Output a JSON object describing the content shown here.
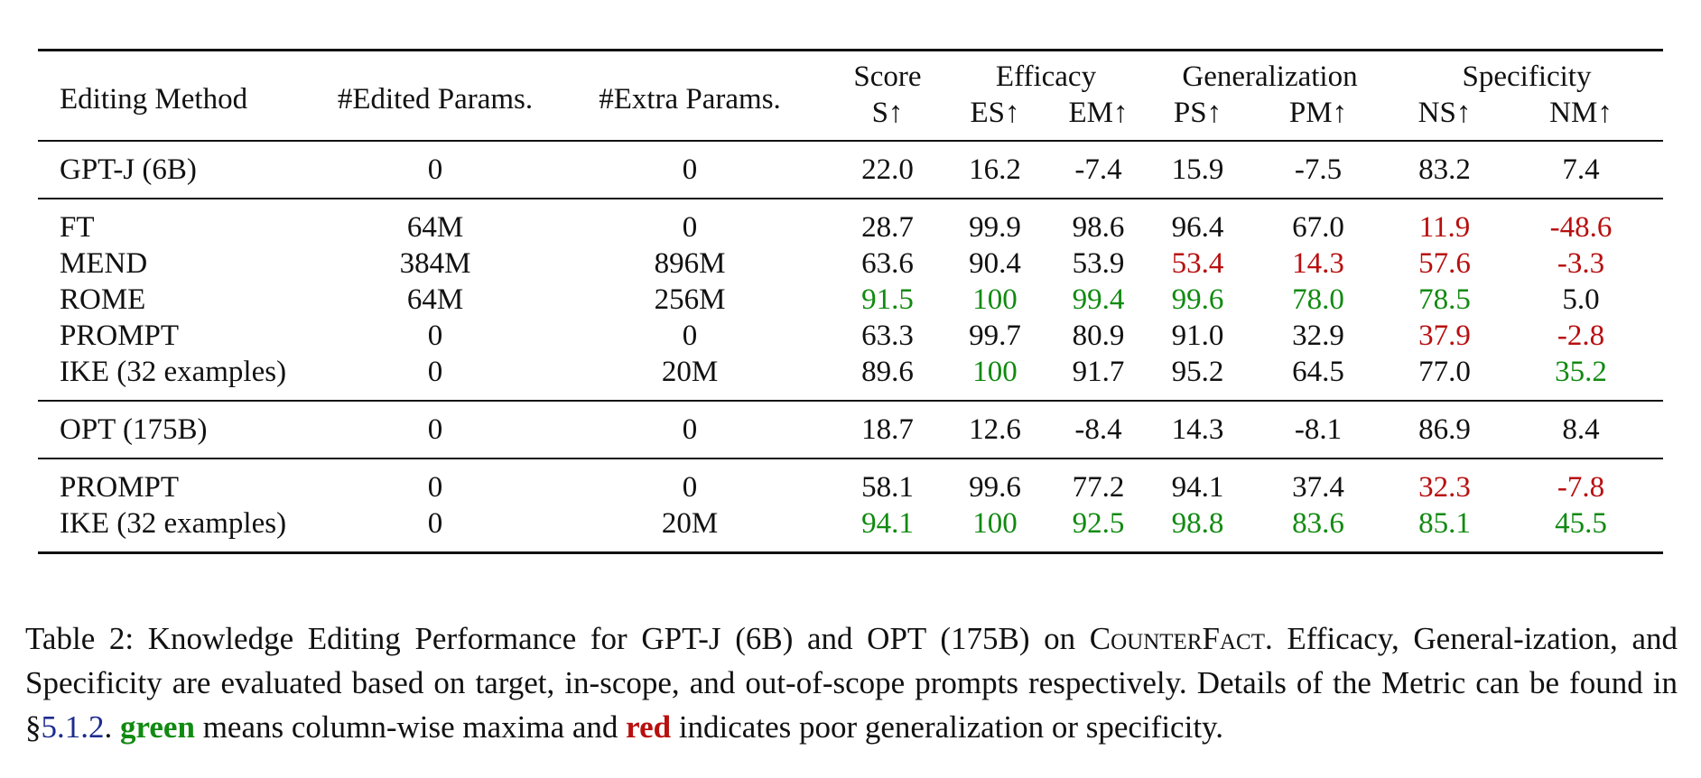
{
  "table": {
    "header": {
      "method": "Editing Method",
      "edited": "#Edited Params.",
      "extra": "#Extra Params.",
      "score": "Score",
      "efficacy": "Efficacy",
      "generalization": "Generalization",
      "specificity": "Specificity",
      "sub": [
        "S↑",
        "ES↑",
        "EM↑",
        "PS↑",
        "PM↑",
        "NS↑",
        "NM↑"
      ]
    },
    "groups": [
      {
        "rows": [
          {
            "method": "GPT-J (6B)",
            "edited": "0",
            "extra": "0",
            "vals": [
              "22.0",
              "16.2",
              "-7.4",
              "15.9",
              "-7.5",
              "83.2",
              "7.4"
            ],
            "hl": [
              "",
              "",
              "",
              "",
              "",
              "",
              ""
            ]
          }
        ]
      },
      {
        "rows": [
          {
            "method": "FT",
            "edited": "64M",
            "extra": "0",
            "vals": [
              "28.7",
              "99.9",
              "98.6",
              "96.4",
              "67.0",
              "11.9",
              "-48.6"
            ],
            "hl": [
              "",
              "",
              "",
              "",
              "",
              "red",
              "red"
            ]
          },
          {
            "method": "MEND",
            "edited": "384M",
            "extra": "896M",
            "vals": [
              "63.6",
              "90.4",
              "53.9",
              "53.4",
              "14.3",
              "57.6",
              "-3.3"
            ],
            "hl": [
              "",
              "",
              "",
              "red",
              "red",
              "red",
              "red"
            ]
          },
          {
            "method": "ROME",
            "edited": "64M",
            "extra": "256M",
            "vals": [
              "91.5",
              "100",
              "99.4",
              "99.6",
              "78.0",
              "78.5",
              "5.0"
            ],
            "hl": [
              "green",
              "green",
              "green",
              "green",
              "green",
              "green",
              ""
            ]
          },
          {
            "method": "PROMPT",
            "edited": "0",
            "extra": "0",
            "vals": [
              "63.3",
              "99.7",
              "80.9",
              "91.0",
              "32.9",
              "37.9",
              "-2.8"
            ],
            "hl": [
              "",
              "",
              "",
              "",
              "",
              "red",
              "red"
            ]
          },
          {
            "method": "IKE (32 examples)",
            "edited": "0",
            "extra": "20M",
            "vals": [
              "89.6",
              "100",
              "91.7",
              "95.2",
              "64.5",
              "77.0",
              "35.2"
            ],
            "hl": [
              "",
              "green",
              "",
              "",
              "",
              "",
              "green"
            ]
          }
        ]
      },
      {
        "rows": [
          {
            "method": "OPT (175B)",
            "edited": "0",
            "extra": "0",
            "vals": [
              "18.7",
              "12.6",
              "-8.4",
              "14.3",
              "-8.1",
              "86.9",
              "8.4"
            ],
            "hl": [
              "",
              "",
              "",
              "",
              "",
              "",
              ""
            ]
          }
        ]
      },
      {
        "rows": [
          {
            "method": "PROMPT",
            "edited": "0",
            "extra": "0",
            "vals": [
              "58.1",
              "99.6",
              "77.2",
              "94.1",
              "37.4",
              "32.3",
              "-7.8"
            ],
            "hl": [
              "",
              "",
              "",
              "",
              "",
              "red",
              "red"
            ]
          },
          {
            "method": "IKE (32 examples)",
            "edited": "0",
            "extra": "20M",
            "vals": [
              "94.1",
              "100",
              "92.5",
              "98.8",
              "83.6",
              "85.1",
              "45.5"
            ],
            "hl": [
              "green",
              "green",
              "green",
              "green",
              "green",
              "green",
              "green"
            ]
          }
        ]
      }
    ]
  },
  "caption": {
    "part1": "Table 2: Knowledge Editing Performance for GPT-J (6B) and OPT (175B) on ",
    "dataset": "CounterFact",
    "part2": ". Efficacy, General-ization, and Specificity are evaluated based on target, in-scope, and out-of-scope prompts respectively. Details of the Metric can be found in  §",
    "section_ref": "5.1.2",
    "part3": ". ",
    "green_word": "green",
    "part4": " means column-wise maxima and ",
    "red_word": "red",
    "part5": " indicates poor generalization or specificity."
  },
  "colors": {
    "green": "#118a11",
    "red": "#b80f0f",
    "link": "#1d2c8f"
  }
}
